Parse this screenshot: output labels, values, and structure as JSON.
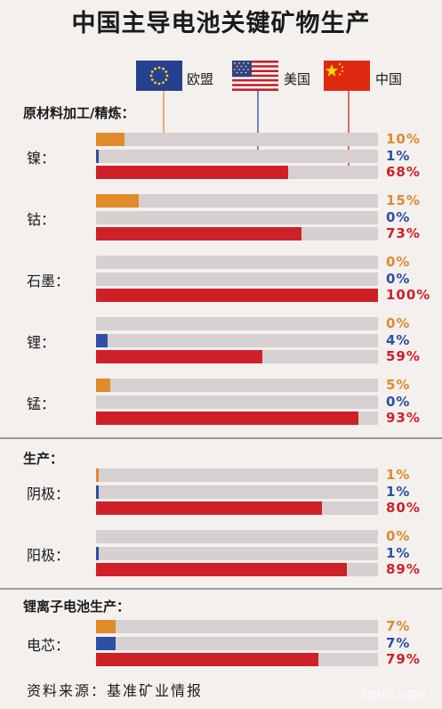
{
  "title": "中国主导电池关键矿物生产",
  "legend": [
    {
      "label": "欧盟",
      "color": "#e08a2a"
    },
    {
      "label": "美国",
      "color": "#2d4fa6"
    },
    {
      "label": "中国",
      "color": "#cf2027"
    }
  ],
  "colors": {
    "eu": "#e08a2a",
    "us": "#2d4fa6",
    "cn": "#cf2027",
    "track": "#d6d0d0"
  },
  "icons": {
    "eu": "eu-flag-icon",
    "us": "us-flag-icon",
    "cn": "china-flag-icon"
  },
  "source": "资料来源：基准矿业情报",
  "watermark": "凤凰社区@霍评",
  "chart_data": {
    "type": "bar",
    "title": "中国主导电池关键矿物生产",
    "series_order": [
      "欧盟",
      "美国",
      "中国"
    ],
    "sections": [
      {
        "title": "原材料加工/精炼：",
        "items": [
          {
            "label": "镍：",
            "values": [
              10,
              1,
              68
            ],
            "texts": [
              "10%",
              "1%",
              "68%"
            ]
          },
          {
            "label": "钴：",
            "values": [
              15,
              0,
              73
            ],
            "texts": [
              "15%",
              "0%",
              "73%"
            ]
          },
          {
            "label": "石墨：",
            "values": [
              0,
              0,
              100
            ],
            "texts": [
              "0%",
              "0%",
              "100%"
            ]
          },
          {
            "label": "锂：",
            "values": [
              0,
              4,
              59
            ],
            "texts": [
              "0%",
              "4%",
              "59%"
            ]
          },
          {
            "label": "锰：",
            "values": [
              5,
              0,
              93
            ],
            "texts": [
              "5%",
              "0%",
              "93%"
            ]
          }
        ]
      },
      {
        "title": "生产：",
        "items": [
          {
            "label": "阴极：",
            "values": [
              1,
              1,
              80
            ],
            "texts": [
              "1%",
              "1%",
              "80%"
            ]
          },
          {
            "label": "阳极：",
            "values": [
              0,
              1,
              89
            ],
            "texts": [
              "0%",
              "1%",
              "89%"
            ]
          }
        ]
      },
      {
        "title": "锂离子电池生产：",
        "items": [
          {
            "label": "电芯：",
            "values": [
              7,
              7,
              79
            ],
            "texts": [
              "7%",
              "7%",
              "79%"
            ]
          }
        ]
      }
    ],
    "xlim": [
      0,
      100
    ]
  }
}
